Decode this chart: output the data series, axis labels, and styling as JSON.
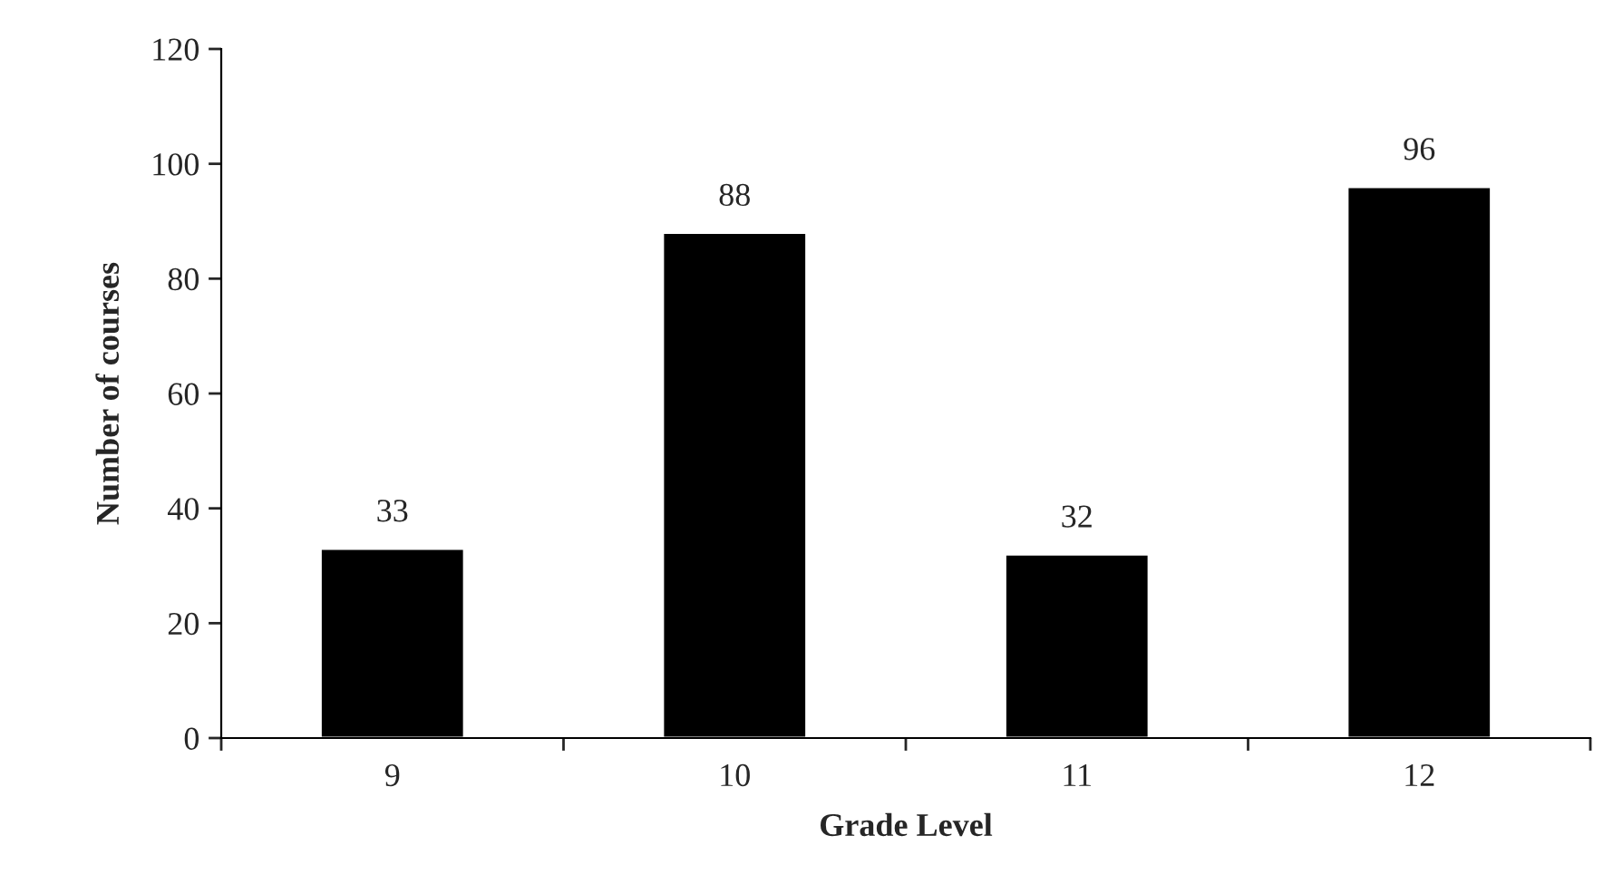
{
  "chart_data": {
    "type": "bar",
    "xlabel": "Grade Level",
    "ylabel": "Number of courses",
    "categories": [
      "9",
      "10",
      "11",
      "12"
    ],
    "values": [
      33,
      88,
      32,
      96
    ],
    "color": "#000000",
    "ylim": [
      0,
      120
    ],
    "yticks": [
      0,
      20,
      40,
      60,
      80,
      100,
      120
    ],
    "grid": false,
    "data_labels": true
  }
}
